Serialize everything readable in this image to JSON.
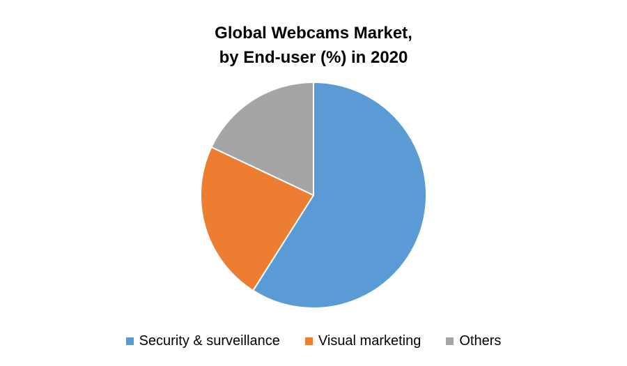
{
  "chart_data": {
    "type": "pie",
    "title": "Global Webcams Market,\nby End-user (%) in 2020",
    "title_lines": [
      "Global Webcams Market,",
      "by End-user (%) in 2020"
    ],
    "legend_position": "bottom",
    "categories": [
      "Security & surveillance",
      "Visual marketing",
      "Others"
    ],
    "values": [
      59,
      23,
      18
    ],
    "colors": [
      "#5B9BD5",
      "#ED7D31",
      "#A5A5A5"
    ]
  }
}
